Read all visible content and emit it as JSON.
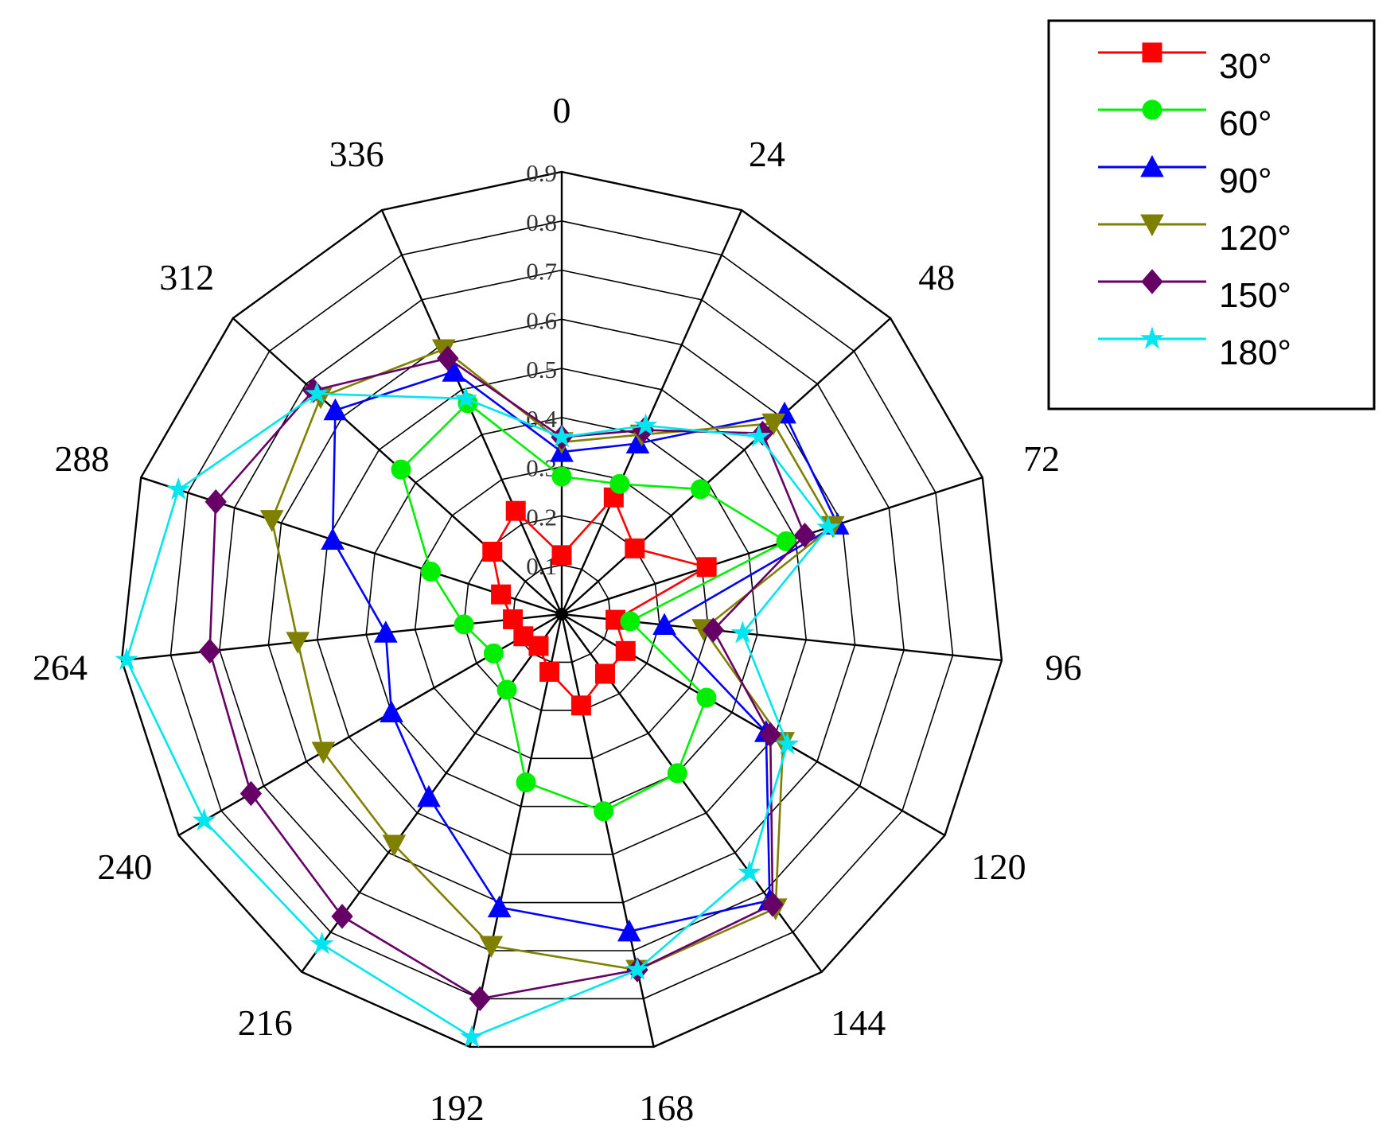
{
  "chart_data": {
    "type": "radar",
    "title": "",
    "angles": [
      "0",
      "24",
      "48",
      "72",
      "96",
      "120",
      "144",
      "168",
      "192",
      "216",
      "240",
      "264",
      "288",
      "312",
      "336"
    ],
    "radial_ticks": [
      "0.1",
      "0.2",
      "0.3",
      "0.4",
      "0.5",
      "0.6",
      "0.7",
      "0.8",
      "0.9"
    ],
    "rlim": [
      0,
      0.9
    ],
    "grid": true,
    "legend_position": "top-right",
    "series": [
      {
        "name": "30°",
        "color": "#ff0000",
        "marker": "square",
        "values": [
          0.12,
          0.26,
          0.2,
          0.31,
          0.11,
          0.15,
          0.15,
          0.19,
          0.12,
          0.08,
          0.09,
          0.1,
          0.13,
          0.19,
          0.23
        ]
      },
      {
        "name": "60°",
        "color": "#00ee00",
        "marker": "circle",
        "values": [
          0.28,
          0.29,
          0.38,
          0.48,
          0.14,
          0.34,
          0.4,
          0.41,
          0.35,
          0.19,
          0.16,
          0.2,
          0.28,
          0.44,
          0.47
        ]
      },
      {
        "name": "90°",
        "color": "#0000ff",
        "marker": "triangle-up",
        "values": [
          0.33,
          0.38,
          0.61,
          0.59,
          0.21,
          0.48,
          0.72,
          0.66,
          0.61,
          0.46,
          0.4,
          0.36,
          0.49,
          0.62,
          0.54
        ]
      },
      {
        "name": "120°",
        "color": "#808000",
        "marker": "triangle-down",
        "values": [
          0.35,
          0.4,
          0.58,
          0.58,
          0.29,
          0.52,
          0.74,
          0.74,
          0.69,
          0.58,
          0.56,
          0.54,
          0.62,
          0.66,
          0.59
        ]
      },
      {
        "name": "150°",
        "color": "#660066",
        "marker": "diamond",
        "values": [
          0.36,
          0.41,
          0.55,
          0.52,
          0.31,
          0.49,
          0.73,
          0.74,
          0.8,
          0.76,
          0.73,
          0.72,
          0.74,
          0.68,
          0.57
        ]
      },
      {
        "name": "180°",
        "color": "#00e5ee",
        "marker": "star",
        "values": [
          0.36,
          0.42,
          0.54,
          0.57,
          0.37,
          0.53,
          0.65,
          0.74,
          0.88,
          0.83,
          0.84,
          0.89,
          0.82,
          0.67,
          0.48
        ]
      }
    ]
  }
}
